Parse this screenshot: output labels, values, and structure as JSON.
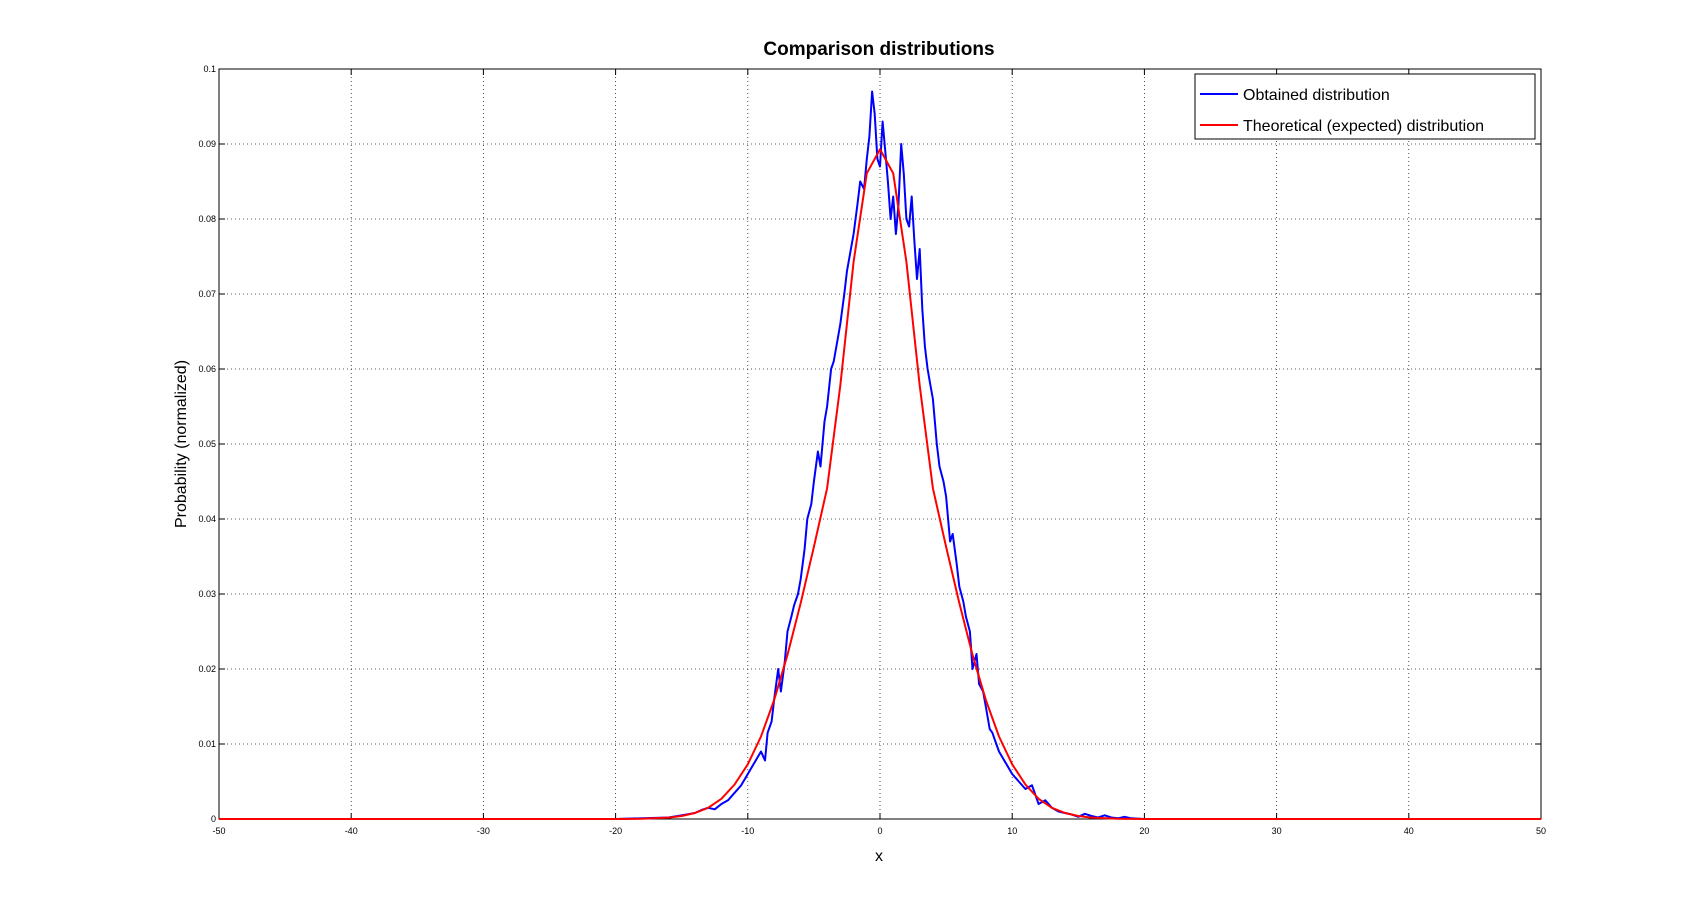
{
  "chart_data": {
    "type": "line",
    "title": "Comparison distributions",
    "xlabel": "x",
    "ylabel": "Probability (normalized)",
    "xlim": [
      -50,
      50
    ],
    "ylim": [
      0,
      0.1
    ],
    "grid": true,
    "legend_position": "top-right",
    "x_ticks": [
      -50,
      -40,
      -30,
      -20,
      -10,
      0,
      10,
      20,
      30,
      40,
      50
    ],
    "y_ticks": [
      0,
      0.01,
      0.02,
      0.03,
      0.04,
      0.05,
      0.06,
      0.07,
      0.08,
      0.09,
      0.1
    ],
    "x_tick_labels": [
      "-50",
      "-40",
      "-30",
      "-20",
      "-10",
      "0",
      "10",
      "20",
      "30",
      "40",
      "50"
    ],
    "y_tick_labels": [
      "0",
      "0.01",
      "0.02",
      "0.03",
      "0.04",
      "0.05",
      "0.06",
      "0.07",
      "0.08",
      "0.09",
      "0.1"
    ],
    "series": [
      {
        "name": "Obtained distribution",
        "color": "#0000ff",
        "x": [
          -50,
          -40,
          -30,
          -20,
          -16,
          -15,
          -14,
          -13.5,
          -13,
          -12.5,
          -12,
          -11.5,
          -11,
          -10.5,
          -10,
          -9.5,
          -9,
          -8.7,
          -8.5,
          -8.2,
          -8,
          -7.7,
          -7.5,
          -7.2,
          -7,
          -6.7,
          -6.5,
          -6.2,
          -6,
          -5.7,
          -5.5,
          -5.2,
          -5,
          -4.7,
          -4.5,
          -4.2,
          -4,
          -3.7,
          -3.5,
          -3.2,
          -3,
          -2.7,
          -2.5,
          -2.2,
          -2,
          -1.7,
          -1.5,
          -1.2,
          -1,
          -0.8,
          -0.6,
          -0.4,
          -0.2,
          0,
          0.2,
          0.4,
          0.6,
          0.8,
          1,
          1.2,
          1.4,
          1.6,
          1.8,
          2,
          2.2,
          2.4,
          2.6,
          2.8,
          3,
          3.2,
          3.4,
          3.6,
          3.8,
          4,
          4.3,
          4.5,
          4.8,
          5,
          5.3,
          5.5,
          5.8,
          6,
          6.3,
          6.5,
          6.8,
          7,
          7.3,
          7.5,
          7.8,
          8,
          8.3,
          8.5,
          8.8,
          9,
          9.5,
          10,
          10.5,
          11,
          11.5,
          12,
          12.5,
          13,
          13.5,
          14,
          14.5,
          15,
          15.5,
          16,
          16.5,
          17,
          17.5,
          18,
          18.5,
          19,
          20,
          30,
          40,
          50
        ],
        "y": [
          0,
          0,
          0,
          0,
          0.0002,
          0.0005,
          0.0008,
          0.0012,
          0.0015,
          0.0013,
          0.002,
          0.0025,
          0.0035,
          0.0045,
          0.006,
          0.0075,
          0.009,
          0.0078,
          0.0115,
          0.013,
          0.016,
          0.02,
          0.017,
          0.021,
          0.025,
          0.027,
          0.0285,
          0.03,
          0.032,
          0.036,
          0.04,
          0.042,
          0.045,
          0.049,
          0.047,
          0.053,
          0.055,
          0.06,
          0.061,
          0.064,
          0.066,
          0.07,
          0.073,
          0.076,
          0.078,
          0.082,
          0.085,
          0.084,
          0.088,
          0.091,
          0.097,
          0.094,
          0.088,
          0.087,
          0.093,
          0.089,
          0.085,
          0.08,
          0.083,
          0.078,
          0.082,
          0.09,
          0.086,
          0.08,
          0.079,
          0.083,
          0.077,
          0.072,
          0.076,
          0.068,
          0.063,
          0.06,
          0.058,
          0.056,
          0.05,
          0.047,
          0.045,
          0.043,
          0.037,
          0.038,
          0.034,
          0.031,
          0.029,
          0.027,
          0.025,
          0.02,
          0.022,
          0.018,
          0.017,
          0.015,
          0.012,
          0.0115,
          0.01,
          0.009,
          0.0075,
          0.006,
          0.005,
          0.004,
          0.0045,
          0.002,
          0.0025,
          0.0015,
          0.001,
          0.0008,
          0.0006,
          0.0003,
          0.0007,
          0.0004,
          0.0002,
          0.0005,
          0.0002,
          0.0001,
          0.0003,
          0.0001,
          0,
          0,
          0,
          0
        ]
      },
      {
        "name": "Theoretical (expected) distribution",
        "color": "#ff0000",
        "x": [
          -50,
          -40,
          -30,
          -20,
          -18,
          -16,
          -15,
          -14,
          -13,
          -12,
          -11,
          -10,
          -9,
          -8,
          -7,
          -6,
          -5,
          -4,
          -3,
          -2,
          -1,
          0,
          1,
          2,
          3,
          4,
          5,
          6,
          7,
          8,
          9,
          10,
          11,
          12,
          13,
          14,
          15,
          16,
          18,
          20,
          30,
          40,
          50
        ],
        "y": [
          0,
          0,
          0,
          0,
          3e-05,
          0.00018,
          0.0004,
          0.0008,
          0.0015,
          0.0027,
          0.0046,
          0.0073,
          0.011,
          0.0159,
          0.0219,
          0.0288,
          0.0363,
          0.0441,
          0.0578,
          0.0743,
          0.0861,
          0.0893,
          0.0861,
          0.0743,
          0.0578,
          0.0441,
          0.0363,
          0.0288,
          0.0219,
          0.0159,
          0.011,
          0.0073,
          0.0046,
          0.0027,
          0.0015,
          0.0008,
          0.0004,
          0.00018,
          3e-05,
          0,
          0,
          0,
          0
        ]
      }
    ]
  }
}
